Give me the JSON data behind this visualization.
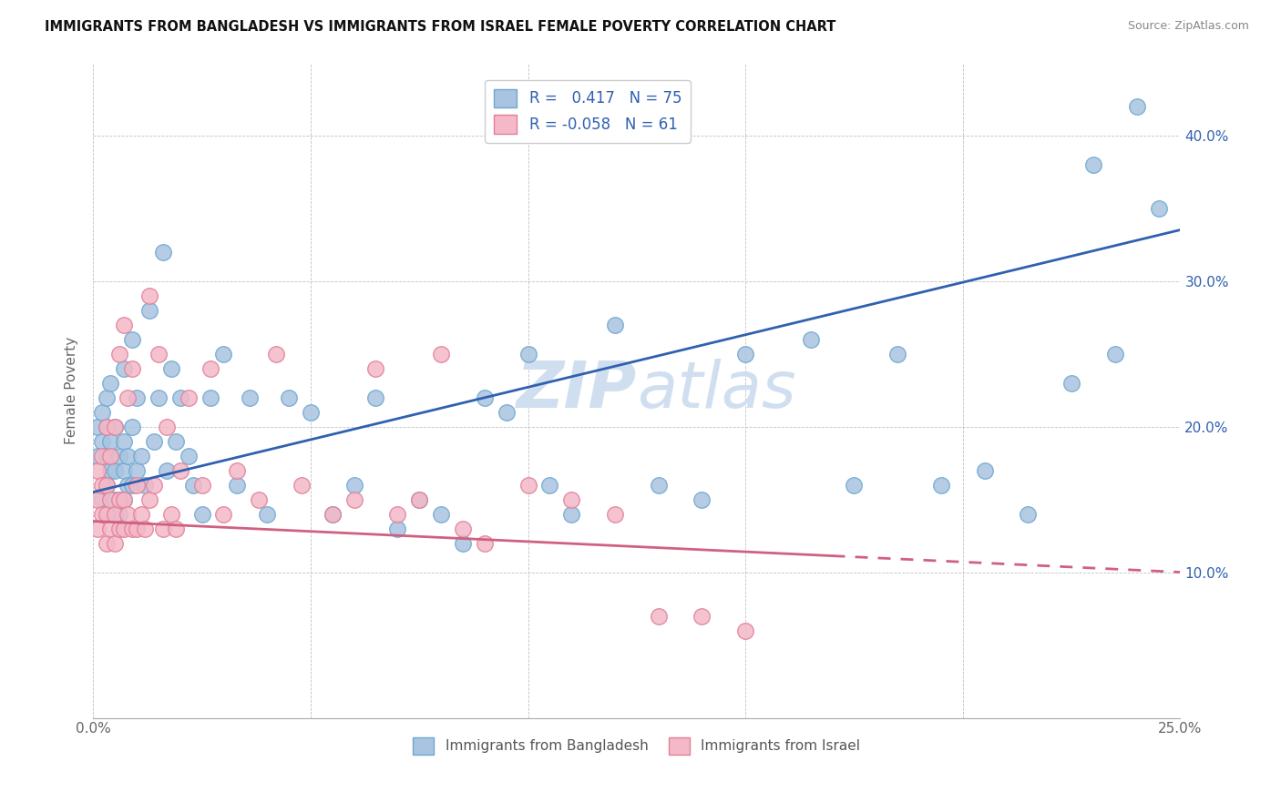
{
  "title": "IMMIGRANTS FROM BANGLADESH VS IMMIGRANTS FROM ISRAEL FEMALE POVERTY CORRELATION CHART",
  "source": "Source: ZipAtlas.com",
  "ylabel": "Female Poverty",
  "xlim": [
    0.0,
    0.25
  ],
  "ylim": [
    0.0,
    0.45
  ],
  "x_ticks": [
    0.0,
    0.05,
    0.1,
    0.15,
    0.2,
    0.25
  ],
  "y_ticks": [
    0.0,
    0.1,
    0.2,
    0.3,
    0.4
  ],
  "bangladesh_color": "#a8c4e0",
  "bangladesh_edge": "#6fa8d0",
  "israel_color": "#f4b8c8",
  "israel_edge": "#e08098",
  "bangladesh_R": 0.417,
  "bangladesh_N": 75,
  "israel_R": -0.058,
  "israel_N": 61,
  "blue_line_color": "#3060b0",
  "pink_line_color": "#d06080",
  "watermark_color": "#d0dff0",
  "bangladesh_x": [
    0.001,
    0.001,
    0.002,
    0.002,
    0.002,
    0.003,
    0.003,
    0.003,
    0.003,
    0.004,
    0.004,
    0.004,
    0.005,
    0.005,
    0.005,
    0.006,
    0.006,
    0.007,
    0.007,
    0.007,
    0.007,
    0.008,
    0.008,
    0.009,
    0.009,
    0.009,
    0.01,
    0.01,
    0.011,
    0.012,
    0.013,
    0.014,
    0.015,
    0.016,
    0.017,
    0.018,
    0.019,
    0.02,
    0.022,
    0.023,
    0.025,
    0.027,
    0.03,
    0.033,
    0.036,
    0.04,
    0.045,
    0.05,
    0.055,
    0.06,
    0.065,
    0.07,
    0.075,
    0.08,
    0.085,
    0.09,
    0.095,
    0.1,
    0.105,
    0.11,
    0.12,
    0.13,
    0.14,
    0.15,
    0.165,
    0.175,
    0.185,
    0.195,
    0.205,
    0.215,
    0.225,
    0.23,
    0.235,
    0.24,
    0.245
  ],
  "bangladesh_y": [
    0.18,
    0.2,
    0.15,
    0.19,
    0.21,
    0.16,
    0.18,
    0.2,
    0.22,
    0.17,
    0.19,
    0.23,
    0.15,
    0.17,
    0.2,
    0.14,
    0.18,
    0.15,
    0.17,
    0.19,
    0.24,
    0.16,
    0.18,
    0.16,
    0.2,
    0.26,
    0.17,
    0.22,
    0.18,
    0.16,
    0.28,
    0.19,
    0.22,
    0.32,
    0.17,
    0.24,
    0.19,
    0.22,
    0.18,
    0.16,
    0.14,
    0.22,
    0.25,
    0.16,
    0.22,
    0.14,
    0.22,
    0.21,
    0.14,
    0.16,
    0.22,
    0.13,
    0.15,
    0.14,
    0.12,
    0.22,
    0.21,
    0.25,
    0.16,
    0.14,
    0.27,
    0.16,
    0.15,
    0.25,
    0.26,
    0.16,
    0.25,
    0.16,
    0.17,
    0.14,
    0.23,
    0.38,
    0.25,
    0.42,
    0.35
  ],
  "israel_x": [
    0.001,
    0.001,
    0.001,
    0.002,
    0.002,
    0.002,
    0.003,
    0.003,
    0.003,
    0.003,
    0.004,
    0.004,
    0.004,
    0.005,
    0.005,
    0.005,
    0.006,
    0.006,
    0.006,
    0.007,
    0.007,
    0.007,
    0.008,
    0.008,
    0.009,
    0.009,
    0.01,
    0.01,
    0.011,
    0.012,
    0.013,
    0.013,
    0.014,
    0.015,
    0.016,
    0.017,
    0.018,
    0.019,
    0.02,
    0.022,
    0.025,
    0.027,
    0.03,
    0.033,
    0.038,
    0.042,
    0.048,
    0.055,
    0.06,
    0.065,
    0.07,
    0.075,
    0.08,
    0.085,
    0.09,
    0.1,
    0.11,
    0.12,
    0.13,
    0.14,
    0.15
  ],
  "israel_y": [
    0.13,
    0.15,
    0.17,
    0.14,
    0.16,
    0.18,
    0.12,
    0.14,
    0.16,
    0.2,
    0.13,
    0.15,
    0.18,
    0.12,
    0.14,
    0.2,
    0.13,
    0.15,
    0.25,
    0.13,
    0.15,
    0.27,
    0.14,
    0.22,
    0.13,
    0.24,
    0.13,
    0.16,
    0.14,
    0.13,
    0.15,
    0.29,
    0.16,
    0.25,
    0.13,
    0.2,
    0.14,
    0.13,
    0.17,
    0.22,
    0.16,
    0.24,
    0.14,
    0.17,
    0.15,
    0.25,
    0.16,
    0.14,
    0.15,
    0.24,
    0.14,
    0.15,
    0.25,
    0.13,
    0.12,
    0.16,
    0.15,
    0.14,
    0.07,
    0.07,
    0.06
  ]
}
